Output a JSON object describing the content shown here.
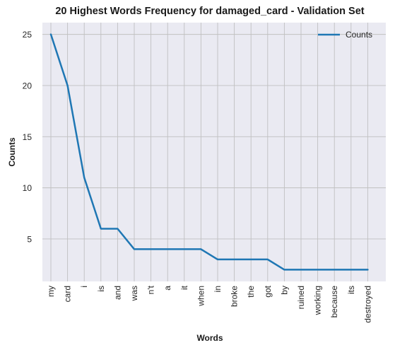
{
  "chart_data": {
    "type": "line",
    "title": "20 Highest Words Frequency for damaged_card - Validation Set",
    "xlabel": "Words",
    "ylabel": "Counts",
    "categories": [
      "my",
      "card",
      "i",
      "is",
      "and",
      "was",
      "n't",
      "a",
      "it",
      "when",
      "in",
      "broke",
      "the",
      "got",
      "by",
      "ruined",
      "working",
      "because",
      "its",
      "destroyed"
    ],
    "series": [
      {
        "name": "Counts",
        "values": [
          25,
          20,
          11,
          6,
          6,
          4,
          4,
          4,
          4,
          4,
          3,
          3,
          3,
          3,
          2,
          2,
          2,
          2,
          2,
          2
        ]
      }
    ],
    "yticks": [
      5,
      10,
      15,
      20,
      25
    ],
    "ylim": [
      0.85,
      26.15
    ],
    "grid": true,
    "legend_position": "top-right",
    "colors": {
      "line": "#1f77b4",
      "plot_background": "#eaeaf2",
      "grid": "#c0c0c0"
    }
  }
}
